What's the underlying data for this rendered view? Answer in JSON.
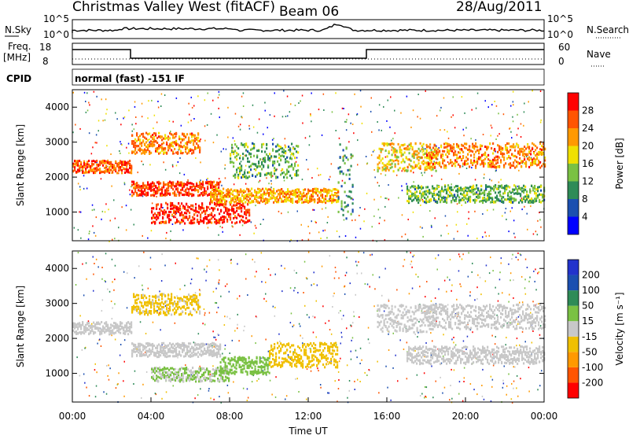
{
  "header": {
    "station": "Christmas Valley West (fitACF)",
    "beam": "Beam 06",
    "date": "28/Aug/2011"
  },
  "top_panels": {
    "nsky_label": "N.Sky",
    "nsky_ticks": [
      "10^5",
      "10^0"
    ],
    "nsearch_label": "N.Search",
    "nsearch_ticks": [
      "10^5",
      "10^0"
    ],
    "freq_label": "Freq.",
    "freq_unit": "[MHz]",
    "freq_ticks": [
      "18",
      "8"
    ],
    "nave_label": "Nave",
    "nave_ticks": [
      "60",
      "0"
    ],
    "cpid_label": "CPID",
    "cpid_text": "normal (fast) -151 IF"
  },
  "chart_data": [
    {
      "type": "heatmap",
      "name": "power",
      "ylabel": "Slant Range [km]",
      "xlabel": "Time UT",
      "xlim": [
        0,
        24
      ],
      "ylim": [
        180,
        4500
      ],
      "yticks": [
        "4000",
        "3000",
        "2000",
        "1000"
      ],
      "ytick_values": [
        4000,
        3000,
        2000,
        1000
      ],
      "xticks": [
        "00:00",
        "04:00",
        "08:00",
        "12:00",
        "16:00",
        "20:00",
        "00:00"
      ],
      "colorbar": {
        "label": "Power [dB]",
        "ticks": [
          "28",
          "24",
          "20",
          "16",
          "12",
          "8",
          "4"
        ],
        "range": [
          0,
          30
        ],
        "colors": [
          "#0000ff",
          "#1b4fb0",
          "#2e8b57",
          "#7ac143",
          "#f0e000",
          "#ff9900",
          "#ff5500",
          "#ff0000"
        ]
      },
      "bands": [
        {
          "t": [
            0,
            3.0
          ],
          "r": [
            2150,
            2500
          ],
          "value": 24
        },
        {
          "t": [
            3.0,
            6.5
          ],
          "r": [
            2700,
            3300
          ],
          "value": 22
        },
        {
          "t": [
            3.0,
            7.5
          ],
          "r": [
            1500,
            1900
          ],
          "value": 26
        },
        {
          "t": [
            4.0,
            9.0
          ],
          "r": [
            700,
            1300
          ],
          "value": 27
        },
        {
          "t": [
            7.0,
            13.5
          ],
          "r": [
            1300,
            1700
          ],
          "value": 20
        },
        {
          "t": [
            8.0,
            11.5
          ],
          "r": [
            2000,
            3000
          ],
          "value": 12
        },
        {
          "t": [
            13.5,
            14.3
          ],
          "r": [
            800,
            3000
          ],
          "value": 10
        },
        {
          "t": [
            15.5,
            18.5
          ],
          "r": [
            2200,
            3000
          ],
          "value": 18
        },
        {
          "t": [
            17.0,
            24.0
          ],
          "r": [
            1300,
            1800
          ],
          "value": 12
        },
        {
          "t": [
            18.0,
            24.0
          ],
          "r": [
            2300,
            3000
          ],
          "value": 22
        }
      ]
    },
    {
      "type": "heatmap",
      "name": "velocity",
      "ylabel": "Slant Range [km]",
      "xlabel": "Time UT",
      "xlim": [
        0,
        24
      ],
      "ylim": [
        180,
        4500
      ],
      "yticks": [
        "4000",
        "3000",
        "2000",
        "1000"
      ],
      "ytick_values": [
        4000,
        3000,
        2000,
        1000
      ],
      "xticks": [
        "00:00",
        "04:00",
        "08:00",
        "12:00",
        "16:00",
        "20:00",
        "00:00"
      ],
      "colorbar": {
        "label": "Velocity [m s⁻¹]",
        "ticks": [
          "200",
          "100",
          "50",
          "15",
          "-15",
          "-50",
          "-100",
          "-200"
        ],
        "range": [
          -250,
          250
        ],
        "colors": [
          "#ff0000",
          "#ff5500",
          "#ff9900",
          "#f0c000",
          "#c8c8c8",
          "#7ac143",
          "#2e8b57",
          "#1b4fb0",
          "#2233cc"
        ]
      },
      "bands": [
        {
          "t": [
            0,
            3.0
          ],
          "r": [
            2150,
            2500
          ],
          "value": 0
        },
        {
          "t": [
            3.0,
            6.5
          ],
          "r": [
            2700,
            3300
          ],
          "value": -40
        },
        {
          "t": [
            3.0,
            7.5
          ],
          "r": [
            1500,
            1900
          ],
          "value": 0
        },
        {
          "t": [
            4.0,
            8.0
          ],
          "r": [
            800,
            1200
          ],
          "value": 30
        },
        {
          "t": [
            7.5,
            10.0
          ],
          "r": [
            1000,
            1500
          ],
          "value": 60
        },
        {
          "t": [
            10.0,
            13.5
          ],
          "r": [
            1200,
            1900
          ],
          "value": -60
        },
        {
          "t": [
            15.5,
            18.5
          ],
          "r": [
            2200,
            3000
          ],
          "value": 0
        },
        {
          "t": [
            17.0,
            24.0
          ],
          "r": [
            1300,
            1800
          ],
          "value": 0
        },
        {
          "t": [
            18.0,
            24.0
          ],
          "r": [
            2300,
            3000
          ],
          "value": 0
        }
      ]
    }
  ]
}
